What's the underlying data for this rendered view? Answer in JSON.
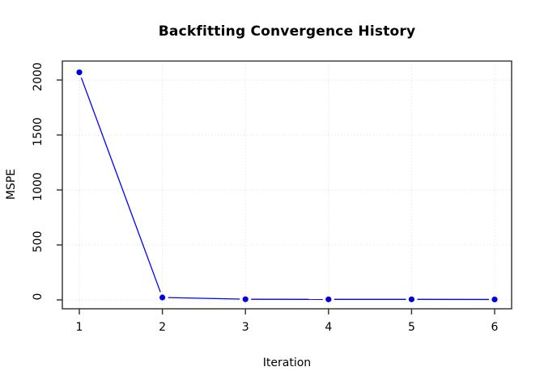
{
  "title": "Backfitting Convergence History",
  "colors": {
    "line": "#0000ff",
    "marker": "#0000cc",
    "grid": "#d9d9d9",
    "frame": "#2e2e2e",
    "tick": "#2e2e2e",
    "text": "#000000",
    "background": "#ffffff"
  },
  "chart_data": {
    "type": "line",
    "title": "Backfitting Convergence History",
    "xlabel": "Iteration",
    "ylabel": "MSPE",
    "x": [
      1,
      2,
      3,
      4,
      5,
      6
    ],
    "series": [
      {
        "name": "MSPE",
        "values": [
          2070,
          22,
          6,
          5,
          5,
          4
        ]
      }
    ],
    "xticks": [
      1,
      2,
      3,
      4,
      5,
      6
    ],
    "yticks": [
      0,
      500,
      1000,
      1500,
      2000
    ],
    "xlim": [
      1,
      6
    ],
    "ylim": [
      0,
      2180
    ],
    "grid": true,
    "grid_style": "dotted",
    "marker": "filled-circle",
    "line_style": "points-and-segments",
    "legend_position": "none",
    "y_tick_label_rotation": 90
  }
}
